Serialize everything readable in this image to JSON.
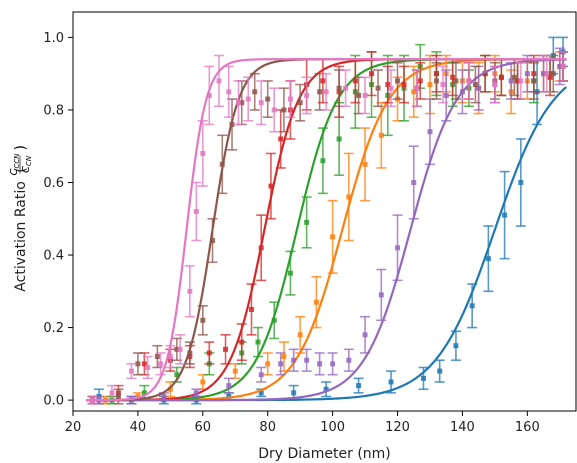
{
  "chart_data": {
    "type": "scatter",
    "title": "",
    "xlabel": "Dry Diameter (nm)",
    "ylabel": "Activation Ratio (CCCN/CCN)",
    "ylabel_main": "Activation Ratio",
    "ylabel_frac_top": "C",
    "ylabel_frac_top_sub": "CCN",
    "ylabel_frac_bottom": "C",
    "ylabel_frac_bottom_sub": "CN",
    "xlim": [
      20,
      175
    ],
    "ylim": [
      -0.03,
      1.07
    ],
    "x_ticks": [
      20,
      40,
      60,
      80,
      100,
      120,
      140,
      160
    ],
    "y_ticks": [
      0.0,
      0.2,
      0.4,
      0.6,
      0.8,
      1.0
    ],
    "x_tick_labels": [
      "20",
      "40",
      "60",
      "80",
      "100",
      "120",
      "140",
      "160"
    ],
    "y_tick_labels": [
      "0.0",
      "0.2",
      "0.4",
      "0.6",
      "0.8",
      "1.0"
    ],
    "grid": false,
    "legend": "none",
    "series": [
      {
        "color": "#1f77b4",
        "fit": {
          "d50": 150,
          "k": 0.11,
          "max": 0.94
        },
        "x": [
          28,
          38,
          48,
          58,
          68,
          78,
          88,
          98,
          108,
          118,
          128,
          133,
          138,
          143,
          148,
          153,
          158,
          163,
          168,
          171
        ],
        "y": [
          0.01,
          0.0,
          0.0,
          0.0,
          0.01,
          0.02,
          0.02,
          0.03,
          0.04,
          0.05,
          0.06,
          0.08,
          0.15,
          0.26,
          0.39,
          0.51,
          0.6,
          0.85,
          0.95,
          0.96
        ],
        "err": [
          0.02,
          0.01,
          0.01,
          0.01,
          0.01,
          0.01,
          0.02,
          0.02,
          0.02,
          0.03,
          0.03,
          0.03,
          0.04,
          0.06,
          0.09,
          0.12,
          0.12,
          0.09,
          0.05,
          0.04
        ]
      },
      {
        "color": "#ff7f0e",
        "fit": {
          "d50": 103,
          "k": 0.14,
          "max": 0.94
        },
        "x": [
          30,
          40,
          50,
          60,
          70,
          80,
          85,
          90,
          95,
          100,
          105,
          110,
          115,
          120,
          125,
          130,
          135,
          140,
          145,
          150,
          155,
          160,
          165,
          170
        ],
        "y": [
          0.0,
          0.01,
          0.03,
          0.05,
          0.08,
          0.1,
          0.12,
          0.18,
          0.27,
          0.45,
          0.56,
          0.65,
          0.73,
          0.83,
          0.85,
          0.87,
          0.9,
          0.88,
          0.86,
          0.9,
          0.85,
          0.88,
          0.9,
          0.92
        ],
        "err": [
          0.01,
          0.01,
          0.02,
          0.02,
          0.02,
          0.03,
          0.04,
          0.05,
          0.07,
          0.1,
          0.12,
          0.1,
          0.09,
          0.06,
          0.07,
          0.08,
          0.05,
          0.06,
          0.07,
          0.05,
          0.06,
          0.05,
          0.05,
          0.04
        ]
      },
      {
        "color": "#2ca02c",
        "fit": {
          "d50": 89,
          "k": 0.16,
          "max": 0.94
        },
        "x": [
          32,
          42,
          52,
          62,
          72,
          77,
          82,
          87,
          92,
          97,
          102,
          107,
          112,
          117,
          122,
          127,
          132,
          137,
          142,
          147,
          152,
          157,
          162,
          167,
          171
        ],
        "y": [
          0.0,
          0.02,
          0.07,
          0.1,
          0.13,
          0.16,
          0.22,
          0.35,
          0.49,
          0.66,
          0.72,
          0.85,
          0.87,
          0.84,
          0.86,
          0.92,
          0.9,
          0.87,
          0.86,
          0.9,
          0.89,
          0.88,
          0.88,
          0.9,
          0.92
        ],
        "err": [
          0.01,
          0.02,
          0.02,
          0.03,
          0.03,
          0.04,
          0.05,
          0.06,
          0.07,
          0.09,
          0.1,
          0.1,
          0.09,
          0.11,
          0.09,
          0.06,
          0.06,
          0.06,
          0.05,
          0.05,
          0.05,
          0.05,
          0.06,
          0.05,
          0.04
        ]
      },
      {
        "color": "#d62728",
        "fit": {
          "d50": 79,
          "k": 0.19,
          "max": 0.94
        },
        "x": [
          26,
          34,
          42,
          50,
          56,
          62,
          67,
          72,
          75,
          78,
          81,
          84,
          87,
          92,
          97,
          102,
          107,
          112,
          117,
          122,
          127,
          132,
          137,
          142,
          147,
          152,
          157,
          162,
          167,
          171
        ],
        "y": [
          0.0,
          0.02,
          0.1,
          0.11,
          0.12,
          0.13,
          0.14,
          0.16,
          0.25,
          0.42,
          0.59,
          0.72,
          0.8,
          0.87,
          0.88,
          0.85,
          0.88,
          0.9,
          0.87,
          0.87,
          0.88,
          0.9,
          0.89,
          0.88,
          0.9,
          0.89,
          0.88,
          0.9,
          0.89,
          0.92
        ],
        "err": [
          0.01,
          0.02,
          0.03,
          0.03,
          0.03,
          0.03,
          0.04,
          0.05,
          0.07,
          0.09,
          0.09,
          0.08,
          0.08,
          0.07,
          0.06,
          0.07,
          0.06,
          0.06,
          0.05,
          0.05,
          0.05,
          0.05,
          0.05,
          0.05,
          0.05,
          0.05,
          0.05,
          0.05,
          0.05,
          0.04
        ]
      },
      {
        "color": "#9467bd",
        "fit": {
          "d50": 124,
          "k": 0.14,
          "max": 0.94
        },
        "x": [
          28,
          38,
          48,
          58,
          68,
          78,
          84,
          88,
          92,
          96,
          100,
          105,
          110,
          115,
          120,
          125,
          130,
          135,
          140,
          145,
          150,
          155,
          160,
          165,
          170
        ],
        "y": [
          0.0,
          0.0,
          0.01,
          0.02,
          0.04,
          0.07,
          0.1,
          0.11,
          0.11,
          0.1,
          0.1,
          0.11,
          0.18,
          0.29,
          0.42,
          0.6,
          0.74,
          0.84,
          0.85,
          0.86,
          0.87,
          0.88,
          0.9,
          0.9,
          0.92
        ],
        "err": [
          0.01,
          0.01,
          0.01,
          0.01,
          0.02,
          0.02,
          0.03,
          0.03,
          0.03,
          0.03,
          0.03,
          0.03,
          0.05,
          0.07,
          0.09,
          0.1,
          0.09,
          0.07,
          0.06,
          0.06,
          0.05,
          0.05,
          0.05,
          0.05,
          0.05
        ]
      },
      {
        "color": "#8c564b",
        "fit": {
          "d50": 63,
          "k": 0.25,
          "max": 0.94
        },
        "x": [
          26,
          34,
          40,
          46,
          52,
          56,
          60,
          63,
          66,
          69,
          72,
          76,
          80,
          85,
          90,
          96,
          102,
          108,
          114,
          120,
          126,
          132,
          138,
          144,
          150,
          156,
          162,
          168,
          171
        ],
        "y": [
          0.0,
          0.01,
          0.1,
          0.12,
          0.14,
          0.13,
          0.22,
          0.44,
          0.65,
          0.76,
          0.82,
          0.85,
          0.83,
          0.8,
          0.82,
          0.85,
          0.86,
          0.84,
          0.86,
          0.88,
          0.86,
          0.88,
          0.88,
          0.87,
          0.88,
          0.89,
          0.88,
          0.9,
          0.92
        ],
        "err": [
          0.01,
          0.02,
          0.03,
          0.03,
          0.03,
          0.03,
          0.04,
          0.06,
          0.08,
          0.07,
          0.06,
          0.05,
          0.05,
          0.06,
          0.05,
          0.05,
          0.05,
          0.05,
          0.05,
          0.05,
          0.05,
          0.05,
          0.05,
          0.05,
          0.05,
          0.05,
          0.05,
          0.05,
          0.04
        ]
      },
      {
        "color": "#e377c2",
        "fit": {
          "d50": 55,
          "k": 0.33,
          "max": 0.94
        },
        "x": [
          26,
          32,
          38,
          43,
          47,
          50,
          53,
          56,
          58,
          60,
          62,
          65,
          68,
          71,
          74,
          78,
          82,
          87,
          92,
          98,
          104,
          110,
          118,
          126,
          134,
          142,
          150,
          158,
          166,
          171
        ],
        "y": [
          0.0,
          0.02,
          0.08,
          0.09,
          0.1,
          0.12,
          0.14,
          0.3,
          0.52,
          0.68,
          0.84,
          0.88,
          0.85,
          0.82,
          0.83,
          0.82,
          0.8,
          0.83,
          0.84,
          0.85,
          0.86,
          0.84,
          0.86,
          0.86,
          0.87,
          0.88,
          0.87,
          0.88,
          0.9,
          0.92
        ],
        "err": [
          0.01,
          0.02,
          0.02,
          0.03,
          0.03,
          0.03,
          0.04,
          0.07,
          0.08,
          0.09,
          0.08,
          0.07,
          0.07,
          0.06,
          0.06,
          0.06,
          0.06,
          0.05,
          0.05,
          0.05,
          0.05,
          0.05,
          0.05,
          0.05,
          0.05,
          0.05,
          0.05,
          0.05,
          0.05,
          0.04
        ]
      }
    ]
  }
}
